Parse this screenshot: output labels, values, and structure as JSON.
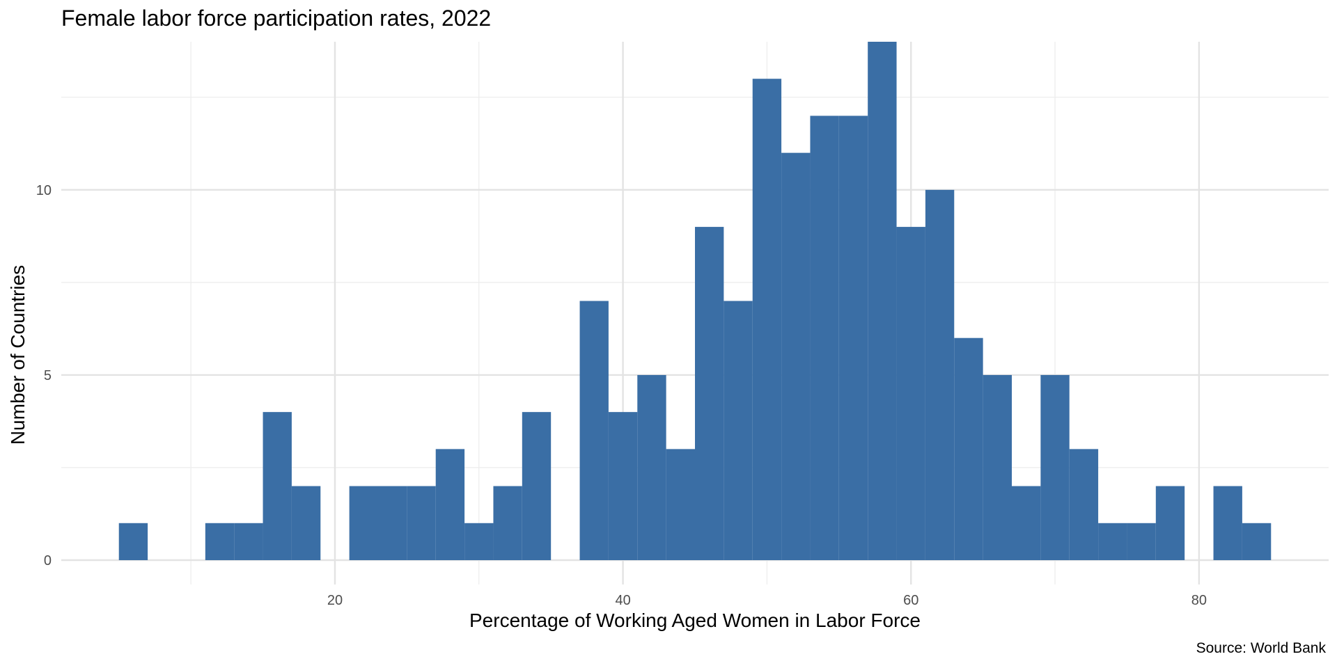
{
  "chart_data": {
    "type": "bar",
    "title": "Female labor force participation rates, 2022",
    "xlabel": "Percentage of Working Aged Women in Labor Force",
    "ylabel": "Number of Countries",
    "caption": "Source: World Bank",
    "bin_width": 2,
    "xlim": [
      1,
      89
    ],
    "ylim": [
      0,
      14
    ],
    "x_ticks": [
      20,
      40,
      60,
      80
    ],
    "y_ticks": [
      0,
      5,
      10
    ],
    "grid": true,
    "bar_color": "#3A6EA5",
    "bins": [
      {
        "start": 5,
        "end": 7,
        "count": 1
      },
      {
        "start": 11,
        "end": 13,
        "count": 1
      },
      {
        "start": 13,
        "end": 15,
        "count": 1
      },
      {
        "start": 15,
        "end": 17,
        "count": 4
      },
      {
        "start": 17,
        "end": 19,
        "count": 2
      },
      {
        "start": 21,
        "end": 23,
        "count": 2
      },
      {
        "start": 23,
        "end": 25,
        "count": 2
      },
      {
        "start": 25,
        "end": 27,
        "count": 2
      },
      {
        "start": 27,
        "end": 29,
        "count": 3
      },
      {
        "start": 29,
        "end": 31,
        "count": 1
      },
      {
        "start": 31,
        "end": 33,
        "count": 2
      },
      {
        "start": 33,
        "end": 35,
        "count": 4
      },
      {
        "start": 37,
        "end": 39,
        "count": 7
      },
      {
        "start": 39,
        "end": 41,
        "count": 4
      },
      {
        "start": 41,
        "end": 43,
        "count": 5
      },
      {
        "start": 43,
        "end": 45,
        "count": 3
      },
      {
        "start": 45,
        "end": 47,
        "count": 9
      },
      {
        "start": 47,
        "end": 49,
        "count": 7
      },
      {
        "start": 49,
        "end": 51,
        "count": 13
      },
      {
        "start": 51,
        "end": 53,
        "count": 11
      },
      {
        "start": 53,
        "end": 55,
        "count": 12
      },
      {
        "start": 55,
        "end": 57,
        "count": 12
      },
      {
        "start": 57,
        "end": 59,
        "count": 14
      },
      {
        "start": 59,
        "end": 61,
        "count": 9
      },
      {
        "start": 61,
        "end": 63,
        "count": 10
      },
      {
        "start": 63,
        "end": 65,
        "count": 6
      },
      {
        "start": 65,
        "end": 67,
        "count": 5
      },
      {
        "start": 67,
        "end": 69,
        "count": 2
      },
      {
        "start": 69,
        "end": 71,
        "count": 5
      },
      {
        "start": 71,
        "end": 73,
        "count": 3
      },
      {
        "start": 73,
        "end": 75,
        "count": 1
      },
      {
        "start": 75,
        "end": 77,
        "count": 1
      },
      {
        "start": 77,
        "end": 79,
        "count": 2
      },
      {
        "start": 81,
        "end": 83,
        "count": 2
      },
      {
        "start": 83,
        "end": 85,
        "count": 1
      }
    ]
  }
}
